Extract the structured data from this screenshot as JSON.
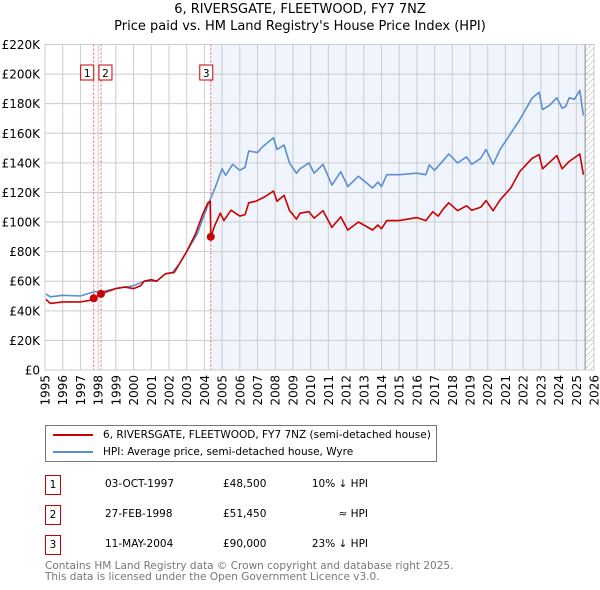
{
  "chart_data": {
    "type": "line",
    "title": "6, RIVERSGATE, FLEETWOOD, FY7 7NZ",
    "subtitle": "Price paid vs. HM Land Registry's House Price Index (HPI)",
    "xlim": [
      1995,
      2026
    ],
    "ylim": [
      0,
      220000
    ],
    "x_ticks": [
      "1995",
      "1996",
      "1997",
      "1998",
      "1999",
      "2000",
      "2001",
      "2002",
      "2003",
      "2004",
      "2005",
      "2006",
      "2007",
      "2008",
      "2009",
      "2010",
      "2011",
      "2012",
      "2013",
      "2014",
      "2015",
      "2016",
      "2017",
      "2018",
      "2019",
      "2020",
      "2021",
      "2022",
      "2023",
      "2024",
      "2025",
      "2026"
    ],
    "y_ticks": [
      {
        "v": 0,
        "label": "£0"
      },
      {
        "v": 20000,
        "label": "£20K"
      },
      {
        "v": 40000,
        "label": "£40K"
      },
      {
        "v": 60000,
        "label": "£60K"
      },
      {
        "v": 80000,
        "label": "£80K"
      },
      {
        "v": 100000,
        "label": "£100K"
      },
      {
        "v": 120000,
        "label": "£120K"
      },
      {
        "v": 140000,
        "label": "£140K"
      },
      {
        "v": 160000,
        "label": "£160K"
      },
      {
        "v": 180000,
        "label": "£180K"
      },
      {
        "v": 200000,
        "label": "£200K"
      },
      {
        "v": 220000,
        "label": "£220K"
      }
    ],
    "grid": true,
    "shaded_from": 2004.36,
    "hatched_from": 2025.5,
    "series": [
      {
        "name": "6, RIVERSGATE, FLEETWOOD, FY7 7NZ (semi-detached house)",
        "color": "#cc0000",
        "points": [
          [
            1995.05,
            47800
          ],
          [
            1995.3,
            45000
          ],
          [
            1996,
            46000
          ],
          [
            1997,
            46000
          ],
          [
            1997.5,
            47000
          ],
          [
            1997.75,
            48500
          ],
          [
            1998.15,
            51450
          ],
          [
            1998.5,
            53000
          ],
          [
            1999,
            55000
          ],
          [
            1999.5,
            56000
          ],
          [
            2000,
            55000
          ],
          [
            2000.4,
            57000
          ],
          [
            2000.6,
            60000
          ],
          [
            2001,
            61000
          ],
          [
            2001.3,
            60000
          ],
          [
            2001.8,
            65000
          ],
          [
            2002.3,
            66000
          ],
          [
            2002.6,
            72000
          ],
          [
            2003,
            80000
          ],
          [
            2003.5,
            92000
          ],
          [
            2003.9,
            105000
          ],
          [
            2004.2,
            113000
          ],
          [
            2004.33,
            114000
          ],
          [
            2004.36,
            90000
          ],
          [
            2004.6,
            98000
          ],
          [
            2004.9,
            106000
          ],
          [
            2005.1,
            101000
          ],
          [
            2005.5,
            108000
          ],
          [
            2006,
            104000
          ],
          [
            2006.3,
            105000
          ],
          [
            2006.5,
            113000
          ],
          [
            2006.9,
            114000
          ],
          [
            2007.4,
            117000
          ],
          [
            2007.9,
            121000
          ],
          [
            2008.1,
            114000
          ],
          [
            2008.5,
            118000
          ],
          [
            2008.8,
            108000
          ],
          [
            2009.2,
            102000
          ],
          [
            2009.4,
            106000
          ],
          [
            2009.9,
            107000
          ],
          [
            2010.2,
            102600
          ],
          [
            2010.7,
            107700
          ],
          [
            2011.2,
            96400
          ],
          [
            2011.7,
            103500
          ],
          [
            2012.1,
            94600
          ],
          [
            2012.7,
            100000
          ],
          [
            2013.5,
            94600
          ],
          [
            2013.8,
            98000
          ],
          [
            2014,
            95500
          ],
          [
            2014.3,
            101000
          ],
          [
            2015,
            101000
          ],
          [
            2016,
            103000
          ],
          [
            2016.5,
            101000
          ],
          [
            2016.9,
            107000
          ],
          [
            2017.2,
            104000
          ],
          [
            2017.5,
            109000
          ],
          [
            2017.8,
            113000
          ],
          [
            2018.3,
            107700
          ],
          [
            2018.8,
            111000
          ],
          [
            2019.1,
            108000
          ],
          [
            2019.6,
            110000
          ],
          [
            2019.9,
            114500
          ],
          [
            2020.3,
            107700
          ],
          [
            2020.7,
            115000
          ],
          [
            2021.3,
            123000
          ],
          [
            2021.8,
            134000
          ],
          [
            2022.5,
            143000
          ],
          [
            2022.9,
            145600
          ],
          [
            2023.1,
            136000
          ],
          [
            2023.9,
            144900
          ],
          [
            2024.2,
            136000
          ],
          [
            2024.6,
            141000
          ],
          [
            2025.2,
            146000
          ],
          [
            2025.4,
            132000
          ]
        ]
      },
      {
        "name": "HPI: Average price, semi-detached house, Wyre",
        "color": "#5b8fd1",
        "points": [
          [
            1995.05,
            51400
          ],
          [
            1995.3,
            49500
          ],
          [
            1996,
            50500
          ],
          [
            1997,
            50000
          ],
          [
            1997.8,
            53000
          ],
          [
            1998.2,
            53000
          ],
          [
            1999,
            55000
          ],
          [
            2000,
            57000
          ],
          [
            2000.6,
            60000
          ],
          [
            2001.3,
            60000
          ],
          [
            2001.8,
            65000
          ],
          [
            2002.2,
            66000
          ],
          [
            2002.6,
            72000
          ],
          [
            2003,
            80000
          ],
          [
            2003.6,
            92000
          ],
          [
            2004,
            105000
          ],
          [
            2004.25,
            113000
          ],
          [
            2004.6,
            123000
          ],
          [
            2005,
            136000
          ],
          [
            2005.2,
            131600
          ],
          [
            2005.6,
            139000
          ],
          [
            2006,
            135000
          ],
          [
            2006.3,
            137000
          ],
          [
            2006.5,
            148000
          ],
          [
            2007,
            147000
          ],
          [
            2007.3,
            151000
          ],
          [
            2007.9,
            157000
          ],
          [
            2008.1,
            149000
          ],
          [
            2008.5,
            152000
          ],
          [
            2008.8,
            140000
          ],
          [
            2009.2,
            133000
          ],
          [
            2009.4,
            136000
          ],
          [
            2009.9,
            140000
          ],
          [
            2010.2,
            133000
          ],
          [
            2010.7,
            139000
          ],
          [
            2011.2,
            125000
          ],
          [
            2011.7,
            134000
          ],
          [
            2012.1,
            124000
          ],
          [
            2012.7,
            131000
          ],
          [
            2013.5,
            123000
          ],
          [
            2013.8,
            127000
          ],
          [
            2014,
            124000
          ],
          [
            2014.3,
            132000
          ],
          [
            2015,
            132000
          ],
          [
            2016,
            133000
          ],
          [
            2016.5,
            132000
          ],
          [
            2016.7,
            138600
          ],
          [
            2017,
            135000
          ],
          [
            2017.8,
            146000
          ],
          [
            2018.3,
            140000
          ],
          [
            2018.8,
            144000
          ],
          [
            2019.1,
            139000
          ],
          [
            2019.6,
            143000
          ],
          [
            2019.9,
            149000
          ],
          [
            2020.3,
            139000
          ],
          [
            2020.7,
            149000
          ],
          [
            2021.3,
            160000
          ],
          [
            2021.8,
            169000
          ],
          [
            2022.5,
            183700
          ],
          [
            2022.9,
            187700
          ],
          [
            2023.1,
            176000
          ],
          [
            2023.5,
            179000
          ],
          [
            2023.9,
            184000
          ],
          [
            2024.2,
            177000
          ],
          [
            2024.4,
            178000
          ],
          [
            2024.6,
            184000
          ],
          [
            2024.9,
            183000
          ],
          [
            2025.2,
            189000
          ],
          [
            2025.4,
            172000
          ]
        ]
      }
    ],
    "sales": [
      {
        "n": "1",
        "x": 1997.75,
        "value": 48500
      },
      {
        "n": "2",
        "x": 1998.16,
        "value": 51450
      },
      {
        "n": "3",
        "x": 2004.36,
        "value": 90000
      }
    ]
  },
  "legend": {
    "property": "6, RIVERSGATE, FLEETWOOD, FY7 7NZ (semi-detached house)",
    "hpi": "HPI: Average price, semi-detached house, Wyre"
  },
  "transactions": [
    {
      "n": "1",
      "date": "03-OCT-1997",
      "price": "£48,500",
      "rel": "10% ↓ HPI"
    },
    {
      "n": "2",
      "date": "27-FEB-1998",
      "price": "£51,450",
      "rel": "≈ HPI"
    },
    {
      "n": "3",
      "date": "11-MAY-2004",
      "price": "£90,000",
      "rel": "23% ↓ HPI"
    }
  ],
  "footer": {
    "line1": "Contains HM Land Registry data © Crown copyright and database right 2025.",
    "line2": "This data is licensed under the Open Government Licence v3.0."
  },
  "colors": {
    "property": "#cc0000",
    "hpi": "#5b8fd1",
    "shade": "#f0f4fc",
    "grid": "#cccccc"
  }
}
